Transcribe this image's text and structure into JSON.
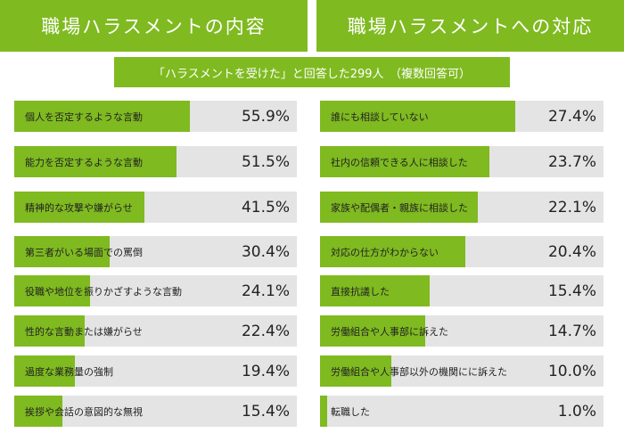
{
  "header_left": "職場ハラスメントの内容",
  "header_right": "職場ハラスメントへの対応",
  "subtitle": "「ハラスメントを受けた」と回答した299人　（複数回答可）",
  "colors": {
    "accent": "#7fba20",
    "track": "#e4e4e4",
    "text": "#222222"
  },
  "chart_data": [
    {
      "type": "bar",
      "orientation": "horizontal",
      "title": "職場ハラスメントの内容",
      "subtitle": "「ハラスメントを受けた」と回答した299人　（複数回答可）",
      "unit": "%",
      "xlim": [
        0,
        100
      ],
      "categories": [
        "個人を否定するような言動",
        "能力を否定するような言動",
        "精神的な攻撃や嫌がらせ",
        "第三者がいる場面での罵倒",
        "役職や地位を振りかざすような言動",
        "性的な言動または嫌がらせ",
        "過度な業務量の強制",
        "挨拶や会話の意図的な無視"
      ],
      "values": [
        55.9,
        51.5,
        41.5,
        30.4,
        24.1,
        22.4,
        19.4,
        15.4
      ],
      "labels": [
        "55.9%",
        "51.5%",
        "41.5%",
        "30.4%",
        "24.1%",
        "22.4%",
        "19.4%",
        "15.4%"
      ]
    },
    {
      "type": "bar",
      "orientation": "horizontal",
      "title": "職場ハラスメントへの対応",
      "subtitle": "「ハラスメントを受けた」と回答した299人　（複数回答可）",
      "unit": "%",
      "xlim": [
        0,
        100
      ],
      "categories": [
        "誰にも相談していない",
        "社内の信頼できる人に相談した",
        "家族や配偶者・親族に相談した",
        "対応の仕方がわからない",
        "直接抗議した",
        "労働組合や人事部に訴えた",
        "労働組合や人事部以外の機関にに訴えた",
        "転職した"
      ],
      "values": [
        27.4,
        23.7,
        22.1,
        20.4,
        15.4,
        14.7,
        10.0,
        1.0
      ],
      "labels": [
        "27.4%",
        "23.7%",
        "22.1%",
        "20.4%",
        "15.4%",
        "14.7%",
        "10.0%",
        "1.0%"
      ]
    }
  ]
}
